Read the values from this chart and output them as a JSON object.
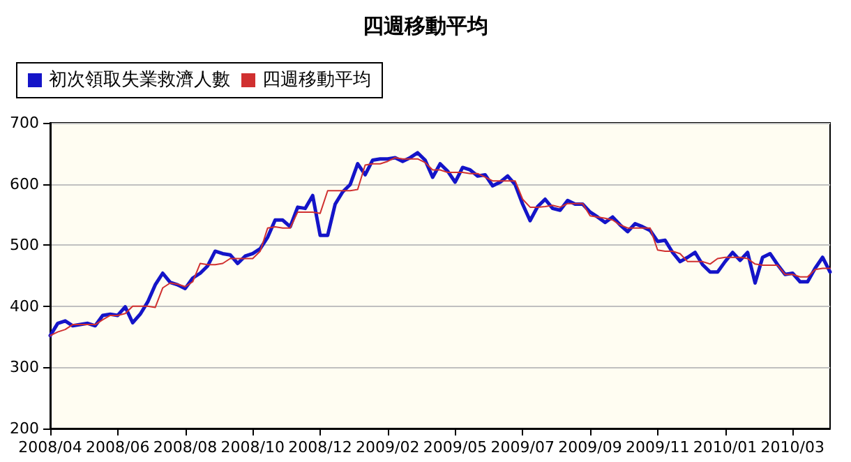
{
  "chart_data": {
    "type": "line",
    "title": "四週移動平均",
    "categories": [
      "2008/04",
      null,
      null,
      null,
      null,
      null,
      null,
      null,
      null,
      "2008/06",
      null,
      null,
      null,
      null,
      null,
      null,
      null,
      null,
      "2008/08",
      null,
      null,
      null,
      null,
      null,
      null,
      null,
      null,
      "2008/10",
      null,
      null,
      null,
      null,
      null,
      null,
      null,
      null,
      "2008/12",
      null,
      null,
      null,
      null,
      null,
      null,
      null,
      null,
      "2009/02",
      null,
      null,
      null,
      null,
      null,
      null,
      null,
      null,
      "2009/05",
      null,
      null,
      null,
      null,
      null,
      null,
      null,
      null,
      "2009/07",
      null,
      null,
      null,
      null,
      null,
      null,
      null,
      null,
      "2009/09",
      null,
      null,
      null,
      null,
      null,
      null,
      null,
      null,
      "2009/11",
      null,
      null,
      null,
      null,
      null,
      null,
      null,
      null,
      "2010/01",
      null,
      null,
      null,
      null,
      null,
      null,
      null,
      null,
      "2010/03",
      null,
      null,
      null,
      null,
      null
    ],
    "series": [
      {
        "name": "初次領取失業救濟人數",
        "color": "#1414c8",
        "values": [
          352,
          372,
          376,
          368,
          370,
          372,
          368,
          385,
          387,
          385,
          399,
          373,
          387,
          407,
          435,
          454,
          439,
          435,
          429,
          446,
          454,
          466,
          490,
          486,
          484,
          470,
          482,
          486,
          494,
          513,
          541,
          541,
          530,
          562,
          560,
          581,
          516,
          516,
          567,
          587,
          599,
          633,
          615,
          639,
          641,
          641,
          643,
          637,
          643,
          651,
          639,
          611,
          633,
          621,
          603,
          627,
          623,
          613,
          615,
          597,
          603,
          613,
          599,
          567,
          540,
          563,
          575,
          560,
          557,
          573,
          567,
          567,
          554,
          546,
          537,
          546,
          533,
          522,
          535,
          530,
          524,
          506,
          508,
          488,
          473,
          480,
          488,
          468,
          456,
          456,
          473,
          488,
          475,
          488,
          438,
          480,
          486,
          468,
          452,
          454,
          440,
          440,
          462,
          480,
          456
        ]
      },
      {
        "name": "四週移動平均",
        "color": "#d03030",
        "values": [
          352,
          358,
          362,
          370,
          370,
          370,
          370,
          378,
          385,
          385,
          388,
          400,
          400,
          400,
          398,
          430,
          438,
          436,
          432,
          440,
          470,
          468,
          468,
          470,
          478,
          478,
          478,
          478,
          490,
          528,
          530,
          528,
          528,
          554,
          554,
          554,
          552,
          589,
          589,
          589,
          589,
          591,
          631,
          633,
          633,
          637,
          643,
          641,
          641,
          641,
          635,
          623,
          623,
          619,
          619,
          619,
          617,
          617,
          611,
          605,
          605,
          605,
          605,
          575,
          562,
          562,
          563,
          565,
          562,
          568,
          568,
          568,
          548,
          546,
          544,
          541,
          533,
          528,
          528,
          528,
          528,
          492,
          490,
          490,
          486,
          473,
          473,
          473,
          469,
          478,
          480,
          480,
          480,
          478,
          469,
          467,
          467,
          467,
          452,
          452,
          448,
          448,
          460,
          462,
          462
        ]
      }
    ],
    "ylim": [
      200,
      700
    ],
    "yticks": [
      200,
      300,
      400,
      500,
      600,
      700
    ],
    "grid": "y",
    "legend": "top left",
    "marker": "none",
    "line_style": "solid"
  }
}
